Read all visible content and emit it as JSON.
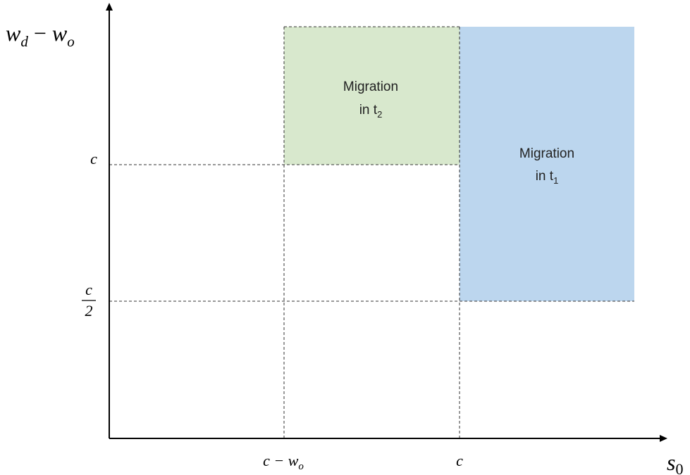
{
  "y_axis": {
    "label": {
      "var1": "w",
      "sub1": "d",
      "op": " − ",
      "var2": "w",
      "sub2": "o"
    },
    "ticks": {
      "upper": "c",
      "lower": {
        "numerator": "c",
        "denominator": "2"
      }
    }
  },
  "x_axis": {
    "label": {
      "var": "s",
      "sub": "0"
    },
    "ticks": {
      "left": {
        "main": "c − w",
        "sub": "o"
      },
      "right": "c"
    }
  },
  "regions": [
    {
      "line1": "Migration",
      "line2": "in t",
      "sub": "2"
    },
    {
      "line1": "Migration",
      "line2": "in t",
      "sub": "1"
    }
  ]
}
